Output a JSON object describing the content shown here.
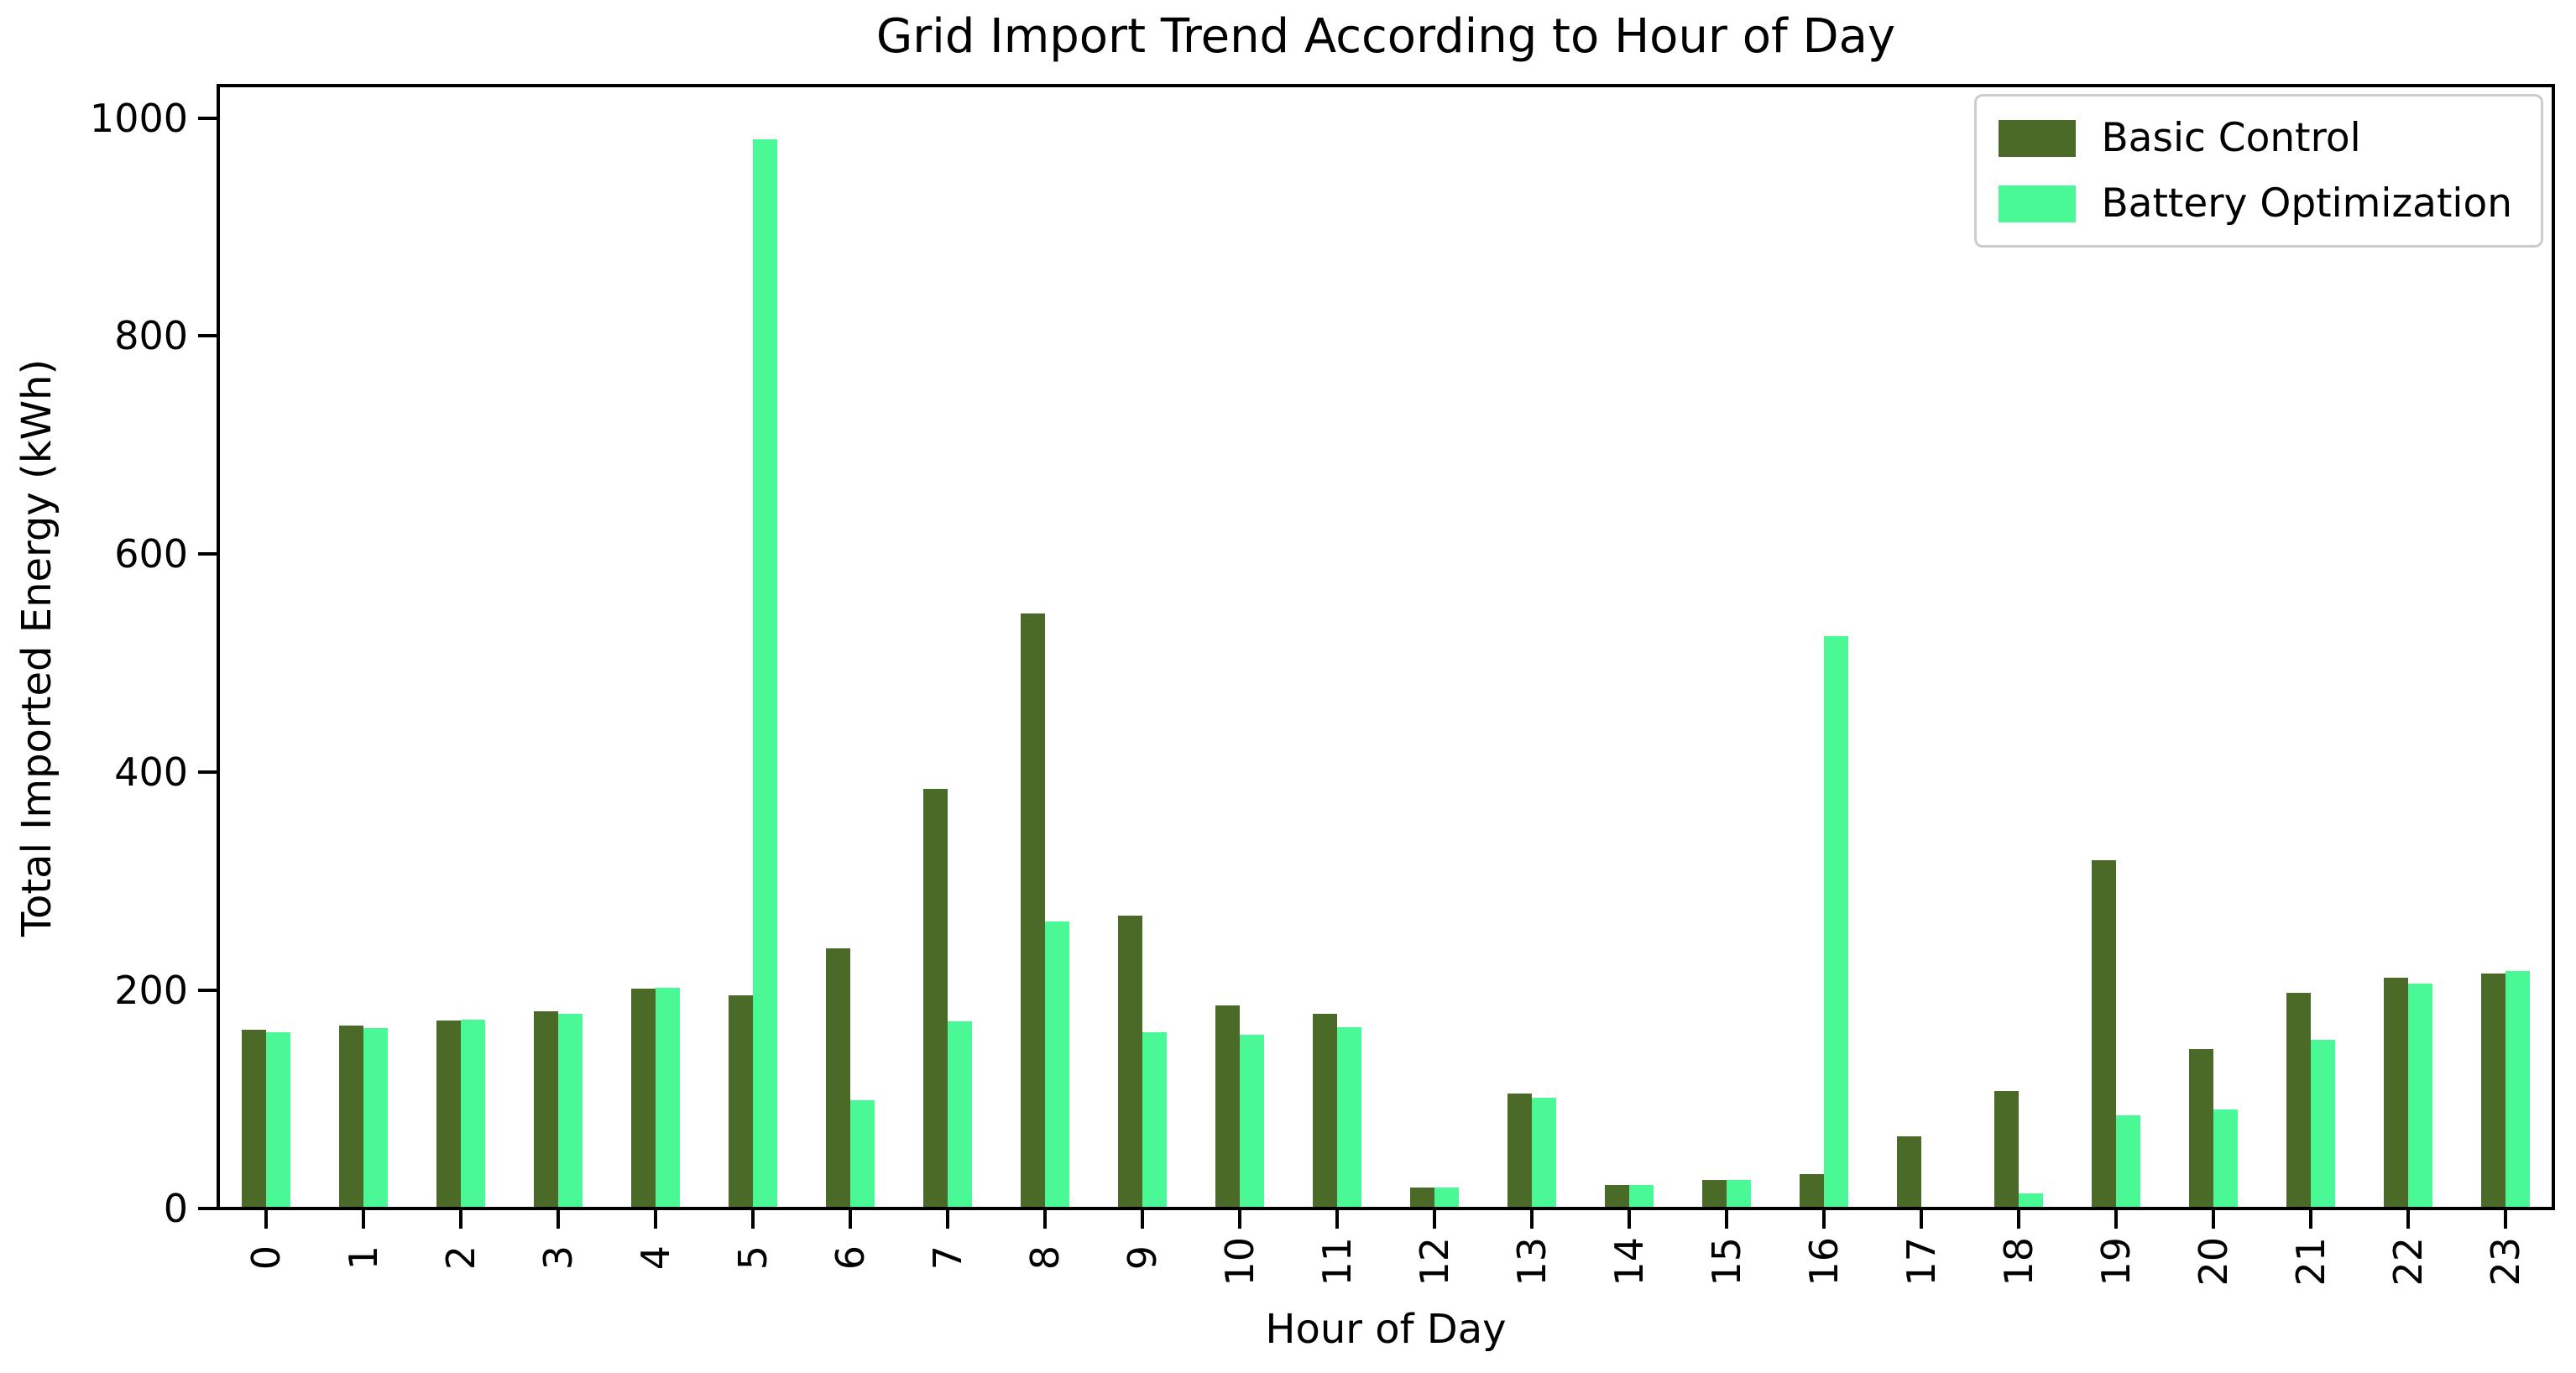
{
  "title": "Grid Import Trend According to Hour of Day",
  "axes": {
    "xlabel": "Hour of Day",
    "ylabel": "Total Imported Energy (kWh)",
    "ytick_labels": [
      "0",
      "200",
      "400",
      "600",
      "800",
      "1000"
    ]
  },
  "legend": {
    "items": [
      {
        "label": "Basic Control",
        "color": "#4C6A27"
      },
      {
        "label": "Battery Optimization",
        "color": "#4AF996"
      }
    ]
  },
  "colors": {
    "basic_control": "#4C6A27",
    "battery_optimization": "#4AF996",
    "axis": "#000000",
    "legend_border": "#cccccc",
    "background": "#ffffff"
  },
  "chart_data": {
    "type": "bar",
    "title": "Grid Import Trend According to Hour of Day",
    "xlabel": "Hour of Day",
    "ylabel": "Total Imported Energy (kWh)",
    "categories": [
      "0",
      "1",
      "2",
      "3",
      "4",
      "5",
      "6",
      "7",
      "8",
      "9",
      "10",
      "11",
      "12",
      "13",
      "14",
      "15",
      "16",
      "17",
      "18",
      "19",
      "20",
      "21",
      "22",
      "23"
    ],
    "series": [
      {
        "name": "Basic Control",
        "color": "#4C6A27",
        "values": [
          162,
          166,
          171,
          179,
          200,
          194,
          237,
          383,
          544,
          267,
          185,
          177,
          18,
          104,
          20,
          25,
          30,
          65,
          106,
          318,
          145,
          196,
          210,
          214
        ]
      },
      {
        "name": "Battery Optimization",
        "color": "#4AF996",
        "values": [
          160,
          164,
          172,
          177,
          201,
          979,
          98,
          170,
          262,
          160,
          158,
          165,
          18,
          100,
          20,
          25,
          523,
          0,
          12,
          84,
          89,
          153,
          205,
          216
        ]
      }
    ],
    "ylim": [
      0,
      1030
    ],
    "yticks": [
      0,
      200,
      400,
      600,
      800,
      1000
    ],
    "xtick_rotation": 90,
    "grid": false,
    "legend_position": "upper right"
  }
}
